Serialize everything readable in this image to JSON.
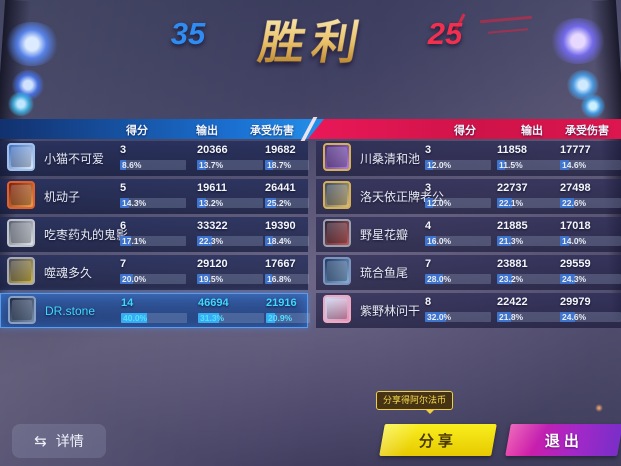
{
  "header": {
    "left_score": "35",
    "title": "胜利",
    "right_score": "25"
  },
  "columns": {
    "score": "得分",
    "output": "输出",
    "damage_taken": "承受伤害"
  },
  "colors": {
    "team_left_accent": "#1c7fd8",
    "team_right_accent": "#e0175a",
    "highlight_text": "#3fd9ff",
    "victory_gold": "#e9c06a",
    "share_button": "#f0dc00",
    "exit_button_left": "#e0189a",
    "exit_button_right": "#7a2ec8"
  },
  "left_team": {
    "players": [
      {
        "name": "小猫不可爱",
        "score": "3",
        "score_pct": "8.6%",
        "output": "20366",
        "output_pct": "13.7%",
        "taken": "19682",
        "taken_pct": "18.7%",
        "highlighted": false,
        "avatar": {
          "frame": "#9fc0e8",
          "c1": "#3f6fc0",
          "c2": "#dcebff"
        }
      },
      {
        "name": "机动子",
        "score": "5",
        "score_pct": "14.3%",
        "output": "19611",
        "output_pct": "13.2%",
        "taken": "26441",
        "taken_pct": "25.2%",
        "highlighted": false,
        "avatar": {
          "frame": "#e06030",
          "c1": "#7a1f0f",
          "c2": "#e8a050"
        }
      },
      {
        "name": "吃枣药丸的鬼影",
        "score": "6",
        "score_pct": "17.1%",
        "output": "33322",
        "output_pct": "22.3%",
        "taken": "19390",
        "taken_pct": "18.4%",
        "highlighted": false,
        "avatar": {
          "frame": "#c0c4cc",
          "c1": "#5a6070",
          "c2": "#e0e4ea"
        }
      },
      {
        "name": "噬魂多久",
        "score": "7",
        "score_pct": "20.0%",
        "output": "29120",
        "output_pct": "19.5%",
        "taken": "17667",
        "taken_pct": "16.8%",
        "highlighted": false,
        "avatar": {
          "frame": "#a8aab4",
          "c1": "#4a4a58",
          "c2": "#d0b84a"
        }
      },
      {
        "name": "DR.stone",
        "score": "14",
        "score_pct": "40.0%",
        "output": "46694",
        "output_pct": "31.3%",
        "taken": "21916",
        "taken_pct": "20.9%",
        "highlighted": true,
        "avatar": {
          "frame": "#8aa0c0",
          "c1": "#1e2a44",
          "c2": "#7a8faf"
        }
      }
    ]
  },
  "right_team": {
    "players": [
      {
        "name": "川桑清和池",
        "score": "3",
        "score_pct": "12.0%",
        "output": "11858",
        "output_pct": "11.5%",
        "taken": "17777",
        "taken_pct": "14.6%",
        "highlighted": false,
        "avatar": {
          "frame": "#d8b054",
          "c1": "#4a2f7a",
          "c2": "#b080e0"
        }
      },
      {
        "name": "洛天依正牌老公.",
        "score": "3",
        "score_pct": "12.0%",
        "output": "22737",
        "output_pct": "22.1%",
        "taken": "27498",
        "taken_pct": "22.6%",
        "highlighted": false,
        "avatar": {
          "frame": "#d8b054",
          "c1": "#3a4a66",
          "c2": "#d8c080"
        }
      },
      {
        "name": "野星花瓣",
        "score": "4",
        "score_pct": "16.0%",
        "output": "21885",
        "output_pct": "21.3%",
        "taken": "17018",
        "taken_pct": "14.0%",
        "highlighted": false,
        "avatar": {
          "frame": "#9aa0ae",
          "c1": "#2e2438",
          "c2": "#c05858"
        }
      },
      {
        "name": "琉合鱼尾",
        "score": "7",
        "score_pct": "28.0%",
        "output": "23881",
        "output_pct": "23.2%",
        "taken": "29559",
        "taken_pct": "24.3%",
        "highlighted": false,
        "avatar": {
          "frame": "#7e94bc",
          "c1": "#1e3a66",
          "c2": "#88b0d8"
        }
      },
      {
        "name": "紫野林问干",
        "score": "8",
        "score_pct": "32.0%",
        "output": "22422",
        "output_pct": "21.8%",
        "taken": "29979",
        "taken_pct": "24.6%",
        "highlighted": false,
        "avatar": {
          "frame": "#eea8c0",
          "c1": "#c8d8f0",
          "c2": "#e890b8"
        }
      }
    ]
  },
  "footer": {
    "details_label": "详情",
    "details_icon": "⇆",
    "share_tooltip": "分享得阿尔法币",
    "share_label": "分享",
    "exit_label": "退出"
  }
}
